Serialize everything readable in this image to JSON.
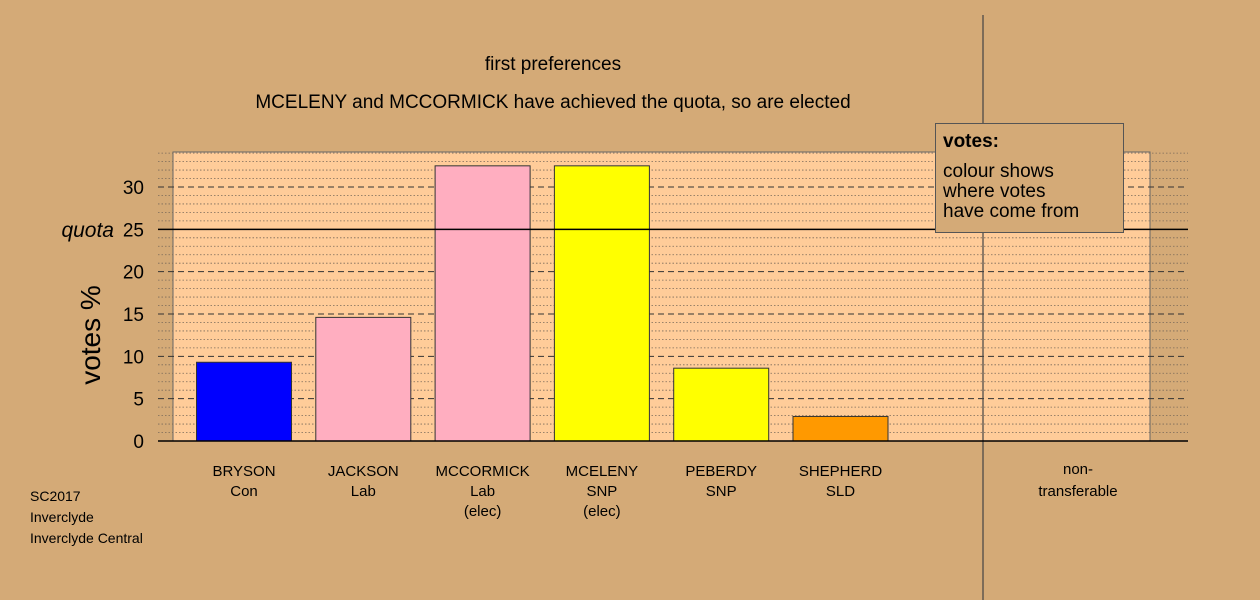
{
  "chart_data": {
    "type": "bar",
    "title": "first preferences",
    "subtitle": "MCELENY and MCCORMICK have achieved the quota, so are elected",
    "ylabel": "votes %",
    "quota_label": "quota",
    "quota": 25,
    "ylim": [
      0,
      34
    ],
    "yticks": [
      "0",
      "5",
      "10",
      "15",
      "20",
      "25",
      "30"
    ],
    "ytick_values": [
      0,
      5,
      10,
      15,
      20,
      25,
      30
    ],
    "grid": true,
    "candidates": [
      {
        "name": "BRYSON",
        "party": "Con",
        "status": "",
        "value": 9.3,
        "color": "#0000ff"
      },
      {
        "name": "JACKSON",
        "party": "Lab",
        "status": "",
        "value": 14.6,
        "color": "#ffaec0"
      },
      {
        "name": "MCCORMICK",
        "party": "Lab",
        "status": "(elec)",
        "value": 32.5,
        "color": "#ffaec0"
      },
      {
        "name": "MCELENY",
        "party": "SNP",
        "status": "(elec)",
        "value": 32.5,
        "color": "#ffff00"
      },
      {
        "name": "PEBERDY",
        "party": "SNP",
        "status": "",
        "value": 8.6,
        "color": "#ffff00"
      },
      {
        "name": "SHEPHERD",
        "party": "SLD",
        "status": "",
        "value": 2.9,
        "color": "#ff9900"
      }
    ],
    "nontransferable": {
      "label1": "non-",
      "label2": "transferable",
      "value": 0
    }
  },
  "legend": {
    "title": "votes:",
    "line1": "colour shows",
    "line2": "where votes",
    "line3": "have come from"
  },
  "footer": {
    "line1": "SC2017",
    "line2": "Inverclyde",
    "line3": "Inverclyde Central"
  },
  "colors": {
    "background": "#d4aa77",
    "plot_area": "#ffcc99"
  }
}
